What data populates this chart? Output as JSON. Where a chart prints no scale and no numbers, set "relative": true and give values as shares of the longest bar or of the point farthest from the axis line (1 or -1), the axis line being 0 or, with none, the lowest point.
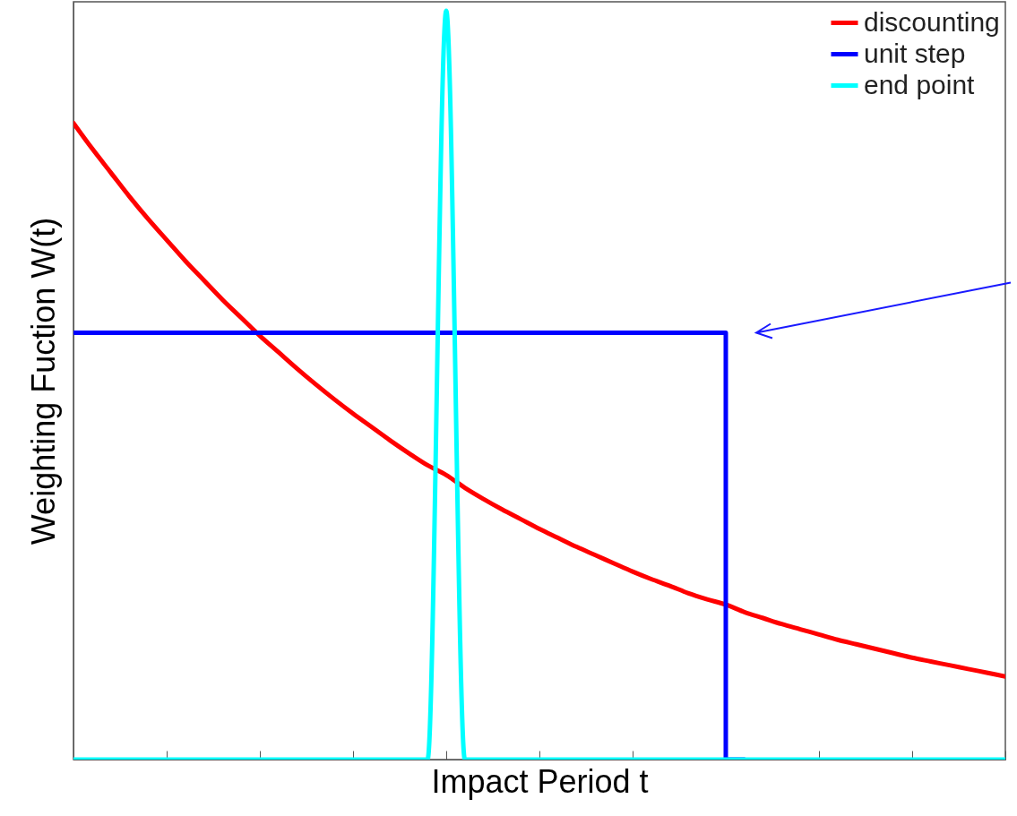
{
  "chart_data": {
    "type": "line",
    "relative": true,
    "xlabel": "Impact Period t",
    "ylabel": "Weighting Fuction W(t)",
    "categories": [
      null,
      null,
      null,
      null,
      null,
      null,
      null,
      null,
      null,
      null,
      null,
      null,
      null,
      null,
      null,
      null,
      null,
      null,
      null,
      null,
      null,
      null,
      null,
      null,
      null,
      null,
      null,
      null,
      null,
      null,
      null,
      null,
      null,
      null,
      null,
      null,
      null,
      null,
      null,
      null,
      null,
      null,
      null,
      null,
      null,
      null,
      null,
      null,
      null,
      null,
      null
    ],
    "series": [
      {
        "name": "discounting",
        "color": "#ff0000",
        "values": [
          0.85,
          0.816,
          0.784,
          0.752,
          0.722,
          0.694,
          0.666,
          0.64,
          0.614,
          0.59,
          0.566,
          0.544,
          0.522,
          0.501,
          0.481,
          0.462,
          0.444,
          0.426,
          0.409,
          0.393,
          0.38,
          0.363,
          0.348,
          0.334,
          0.321,
          0.308,
          0.296,
          0.284,
          0.273,
          0.262,
          0.251,
          0.241,
          0.232,
          0.222,
          0.214,
          0.207,
          0.197,
          0.189,
          0.181,
          0.174,
          0.167,
          0.16,
          0.154,
          0.148,
          0.142,
          0.136,
          0.131,
          0.126,
          0.121,
          0.116,
          0.111
        ]
      },
      {
        "name": "unit step",
        "color": "#0000ff",
        "type": "step",
        "values": [
          0.57,
          0.57,
          0.57,
          0.57,
          0.57,
          0.57,
          0.57,
          0.57,
          0.57,
          0.57,
          0.57,
          0.57,
          0.57,
          0.57,
          0.57,
          0.57,
          0.57,
          0.57,
          0.57,
          0.57,
          0.57,
          0.57,
          0.57,
          0.57,
          0.57,
          0.57,
          0.57,
          0.57,
          0.57,
          0.57,
          0.57,
          0.57,
          0.57,
          0.57,
          0.57,
          0.57,
          0,
          null,
          null,
          null,
          null,
          null,
          null,
          null,
          null,
          null,
          null,
          null,
          null,
          null,
          null
        ]
      },
      {
        "name": "end point",
        "color": "#00ffff",
        "values": [
          0,
          0,
          0,
          0,
          0,
          0,
          0,
          0,
          0,
          0,
          0,
          0,
          0,
          0,
          0,
          0,
          0,
          0,
          0,
          0,
          1,
          0,
          0,
          0,
          0,
          0,
          0,
          0,
          0,
          0,
          0,
          0,
          0,
          0,
          0,
          0,
          0,
          0,
          0,
          0,
          0,
          0,
          0,
          0,
          0,
          0,
          0,
          0,
          0,
          0,
          0
        ]
      }
    ],
    "legend": "top right",
    "marker": "none",
    "grid": false
  }
}
